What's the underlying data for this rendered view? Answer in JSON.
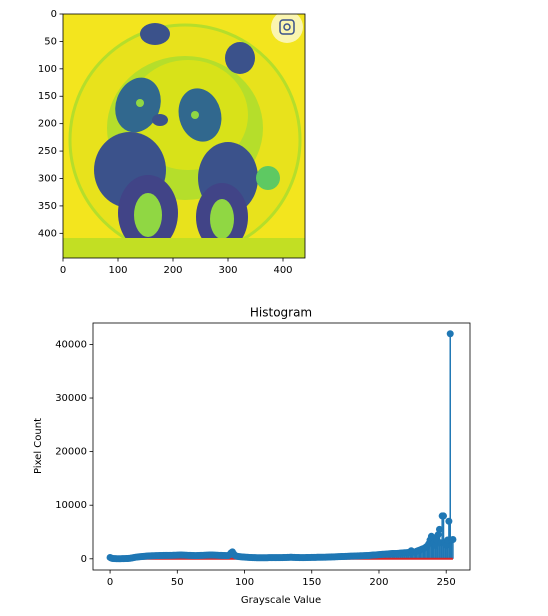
{
  "chart_data": [
    {
      "type": "image",
      "xlim": [
        0,
        440
      ],
      "ylim": [
        445,
        0
      ],
      "xticks": [
        0,
        100,
        200,
        300,
        400
      ],
      "yticks": [
        0,
        50,
        100,
        150,
        200,
        250,
        300,
        350,
        400
      ]
    },
    {
      "type": "stem",
      "title": "Histogram",
      "x_label": "Grayscale Value",
      "y_label": "Pixel Count",
      "color": "#1f77b4",
      "baseline_color": "#d62728",
      "xlim": [
        -12.7,
        267.7
      ],
      "ylim": [
        -2090,
        44000
      ],
      "xticks": [
        0,
        50,
        100,
        150,
        200,
        250
      ],
      "yticks": [
        0,
        10000,
        20000,
        30000,
        40000
      ],
      "x": [
        0,
        1,
        2,
        3,
        4,
        5,
        6,
        7,
        8,
        9,
        10,
        11,
        12,
        13,
        14,
        15,
        16,
        17,
        18,
        19,
        20,
        21,
        22,
        23,
        24,
        25,
        26,
        27,
        28,
        29,
        30,
        31,
        32,
        33,
        34,
        35,
        36,
        37,
        38,
        39,
        40,
        41,
        42,
        43,
        44,
        45,
        46,
        47,
        48,
        49,
        50,
        51,
        52,
        53,
        54,
        55,
        56,
        57,
        58,
        59,
        60,
        61,
        62,
        63,
        64,
        65,
        66,
        67,
        68,
        69,
        70,
        71,
        72,
        73,
        74,
        75,
        76,
        77,
        78,
        79,
        80,
        81,
        82,
        83,
        84,
        85,
        86,
        87,
        88,
        89,
        90,
        91,
        92,
        93,
        94,
        95,
        96,
        97,
        98,
        99,
        100,
        101,
        102,
        103,
        104,
        105,
        106,
        107,
        108,
        109,
        110,
        111,
        112,
        113,
        114,
        115,
        116,
        117,
        118,
        119,
        120,
        121,
        122,
        123,
        124,
        125,
        126,
        127,
        128,
        129,
        130,
        131,
        132,
        133,
        134,
        135,
        136,
        137,
        138,
        139,
        140,
        141,
        142,
        143,
        144,
        145,
        146,
        147,
        148,
        149,
        150,
        151,
        152,
        153,
        154,
        155,
        156,
        157,
        158,
        159,
        160,
        161,
        162,
        163,
        164,
        165,
        166,
        167,
        168,
        169,
        170,
        171,
        172,
        173,
        174,
        175,
        176,
        177,
        178,
        179,
        180,
        181,
        182,
        183,
        184,
        185,
        186,
        187,
        188,
        189,
        190,
        191,
        192,
        193,
        194,
        195,
        196,
        197,
        198,
        199,
        200,
        201,
        202,
        203,
        204,
        205,
        206,
        207,
        208,
        209,
        210,
        211,
        212,
        213,
        214,
        215,
        216,
        217,
        218,
        219,
        220,
        221,
        222,
        223,
        224,
        225,
        226,
        227,
        228,
        229,
        230,
        231,
        232,
        233,
        234,
        235,
        236,
        237,
        238,
        239,
        240,
        241,
        242,
        243,
        244,
        245,
        246,
        247,
        248,
        249,
        250,
        251,
        252,
        253,
        254,
        255
      ],
      "values": [
        250,
        120,
        60,
        40,
        30,
        20,
        20,
        20,
        20,
        30,
        30,
        40,
        50,
        60,
        80,
        100,
        150,
        200,
        250,
        300,
        320,
        350,
        380,
        400,
        420,
        450,
        470,
        500,
        520,
        540,
        550,
        560,
        570,
        580,
        590,
        600,
        600,
        610,
        620,
        620,
        630,
        630,
        640,
        640,
        650,
        650,
        650,
        660,
        660,
        670,
        680,
        690,
        700,
        700,
        690,
        680,
        670,
        660,
        650,
        640,
        630,
        620,
        610,
        600,
        600,
        610,
        620,
        630,
        640,
        650,
        660,
        670,
        680,
        690,
        700,
        710,
        700,
        690,
        680,
        670,
        660,
        650,
        640,
        630,
        620,
        610,
        600,
        600,
        620,
        800,
        1100,
        1300,
        900,
        600,
        500,
        450,
        400,
        380,
        360,
        340,
        320,
        300,
        280,
        260,
        250,
        240,
        230,
        220,
        210,
        200,
        200,
        200,
        200,
        200,
        200,
        200,
        200,
        200,
        210,
        210,
        210,
        210,
        220,
        220,
        220,
        220,
        230,
        230,
        230,
        240,
        240,
        250,
        260,
        270,
        280,
        280,
        270,
        260,
        250,
        240,
        240,
        230,
        230,
        230,
        230,
        230,
        240,
        240,
        250,
        250,
        260,
        260,
        270,
        270,
        280,
        280,
        290,
        290,
        300,
        300,
        300,
        310,
        320,
        330,
        340,
        350,
        360,
        370,
        380,
        390,
        400,
        410,
        420,
        430,
        440,
        450,
        460,
        470,
        480,
        490,
        500,
        510,
        520,
        530,
        540,
        550,
        560,
        570,
        580,
        590,
        600,
        610,
        620,
        640,
        660,
        680,
        700,
        720,
        740,
        760,
        780,
        800,
        820,
        840,
        860,
        880,
        900,
        920,
        940,
        960,
        980,
        1000,
        1000,
        1000,
        1020,
        1040,
        1060,
        1080,
        1100,
        1120,
        1140,
        1160,
        1180,
        1200,
        1500,
        1300,
        1250,
        1300,
        1400,
        1500,
        1600,
        1700,
        1800,
        1900,
        2000,
        2200,
        2400,
        2800,
        3500,
        4200,
        4000,
        3000,
        2500,
        3500,
        4500,
        5500,
        3000,
        8000,
        8000,
        3000,
        2500,
        3500,
        7000,
        42000,
        3500,
        3600
      ]
    }
  ]
}
